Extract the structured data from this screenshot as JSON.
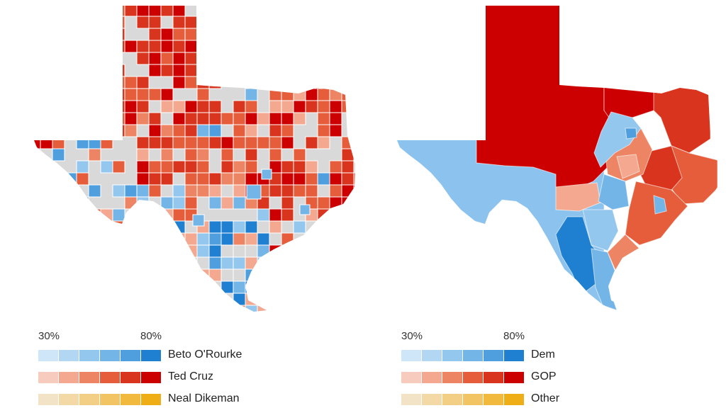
{
  "maps": [
    {
      "name": "county-map",
      "scale_min": "30%",
      "scale_max": "80%",
      "legend": [
        {
          "label": "Beto O'Rourke",
          "colors": [
            "#cfe6f8",
            "#b2d7f3",
            "#94c7ee",
            "#74b5e8",
            "#4f9fdf",
            "#1f7fd0"
          ]
        },
        {
          "label": "Ted Cruz",
          "colors": [
            "#f7cbbd",
            "#f3a88f",
            "#ed8463",
            "#e55d3b",
            "#d9341e",
            "#cc0000"
          ]
        },
        {
          "label": "Neal Dikeman",
          "colors": [
            "#f3e3c6",
            "#f3d9a6",
            "#f3cf85",
            "#f3c463",
            "#f2b93f",
            "#f0ae16"
          ]
        }
      ]
    },
    {
      "name": "district-map",
      "scale_min": "30%",
      "scale_max": "80%",
      "legend": [
        {
          "label": "Dem",
          "colors": [
            "#cfe6f8",
            "#b2d7f3",
            "#94c7ee",
            "#74b5e8",
            "#4f9fdf",
            "#1f7fd0"
          ]
        },
        {
          "label": "GOP",
          "colors": [
            "#f7cbbd",
            "#f3a88f",
            "#ed8463",
            "#e55d3b",
            "#d9341e",
            "#cc0000"
          ]
        },
        {
          "label": "Other",
          "colors": [
            "#f3e3c6",
            "#f3d9a6",
            "#f3cf85",
            "#f3c463",
            "#f2b93f",
            "#f0ae16"
          ]
        }
      ]
    }
  ]
}
